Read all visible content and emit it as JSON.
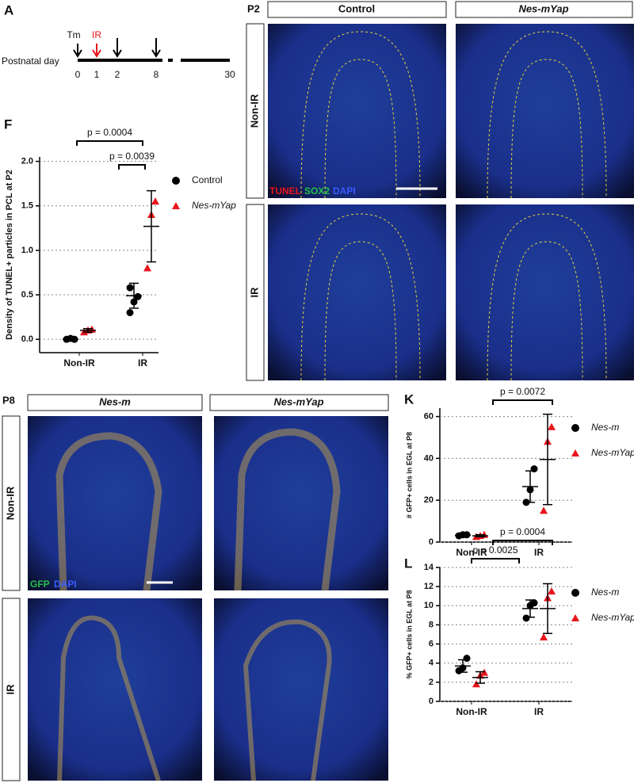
{
  "panel_letters": [
    "A",
    "F",
    "K",
    "L"
  ],
  "timeline": {
    "label": "Postnatal day",
    "day_labels": [
      "0",
      "1",
      "2",
      "8",
      "30"
    ],
    "events": [
      "Tm",
      "IR"
    ]
  },
  "p2_images": {
    "stage": "P2",
    "columns": [
      "Control",
      "Nes-mYap"
    ],
    "rows": [
      "Non-IR",
      "IR"
    ],
    "stains": [
      "TUNEL",
      "SOX2",
      "DAPI"
    ]
  },
  "p8_images": {
    "stage": "P8",
    "columns": [
      "Nes-m",
      "Nes-mYap"
    ],
    "rows": [
      "Non-IR",
      "IR"
    ],
    "stains": [
      "GFP",
      "DAPI"
    ]
  },
  "chart_data": [
    {
      "type": "dot",
      "y_label": "Density of TUNEL+ particles in PCL at P2",
      "categories": [
        "Non-IR",
        "IR"
      ],
      "ylim": [
        -0.15,
        2.05
      ],
      "yticks": [
        {
          "value": 0,
          "label": "0.0"
        },
        0.5,
        {
          "value": 1,
          "label": "1.0"
        },
        1.5,
        {
          "value": 2,
          "label": "2.0"
        }
      ],
      "grid": true,
      "annotations": [
        "p = 0.0004",
        "p = 0.0039"
      ],
      "series": [
        {
          "name": "Control",
          "color": "#000000",
          "marker": "circle",
          "italic": false,
          "values": [
            [
              0.0,
              0.01,
              0.0
            ],
            [
              0.3,
              0.42,
              0.48,
              0.58
            ]
          ],
          "mean": [
            0.0,
            0.49
          ],
          "sd": [
            0.01,
            0.14
          ]
        },
        {
          "name": "Nes-mYap",
          "color": "#e8141b",
          "marker": "triangle",
          "italic": true,
          "values": [
            [
              0.08,
              0.1,
              0.11
            ],
            [
              0.8,
              1.4,
              1.55
            ]
          ],
          "mean": [
            0.1,
            1.27
          ],
          "sd": [
            0.02,
            0.4
          ]
        }
      ]
    },
    {
      "type": "dot",
      "y_label": "# GFP+ cells in EGL at P8",
      "categories": [
        "Non-IR",
        "IR"
      ],
      "ylim": [
        0,
        64
      ],
      "yticks": [
        0,
        20,
        40,
        60
      ],
      "grid": true,
      "annotations": [
        "p = 0.0072"
      ],
      "series": [
        {
          "name": "Nes-m",
          "color": "#000000",
          "marker": "circle",
          "italic": true,
          "values": [
            [
              3,
              3.5,
              3.5
            ],
            [
              19,
              25,
              35
            ]
          ],
          "mean": [
            3.3,
            26.5
          ],
          "sd": [
            0.3,
            7.5
          ]
        },
        {
          "name": "Nes-mYap",
          "color": "#e8141b",
          "marker": "triangle",
          "italic": true,
          "values": [
            [
              2.5,
              3,
              3.5
            ],
            [
              15,
              48,
              55
            ]
          ],
          "mean": [
            3,
            39.5
          ],
          "sd": [
            0.5,
            21.6
          ]
        }
      ]
    },
    {
      "type": "dot",
      "y_label": "% GFP+ cells in EGL at P8",
      "categories": [
        "Non-IR",
        "IR"
      ],
      "ylim": [
        0,
        14
      ],
      "yticks": [
        0,
        2,
        4,
        6,
        8,
        10,
        12,
        14
      ],
      "grid": true,
      "annotations": [
        "p = 0.0025",
        "p = 0.0004"
      ],
      "series": [
        {
          "name": "Nes-m",
          "color": "#000000",
          "marker": "circle",
          "italic": true,
          "values": [
            [
              3.2,
              3.5,
              4.5
            ],
            [
              8.7,
              10.0,
              10.3
            ]
          ],
          "mean": [
            3.7,
            9.7
          ],
          "sd": [
            0.65,
            0.9
          ]
        },
        {
          "name": "Nes-mYap",
          "color": "#e8141b",
          "marker": "triangle",
          "italic": true,
          "values": [
            [
              1.8,
              2.7,
              3.0
            ],
            [
              6.7,
              10.8,
              11.5
            ]
          ],
          "mean": [
            2.5,
            9.7
          ],
          "sd": [
            0.6,
            2.6
          ]
        }
      ]
    }
  ]
}
